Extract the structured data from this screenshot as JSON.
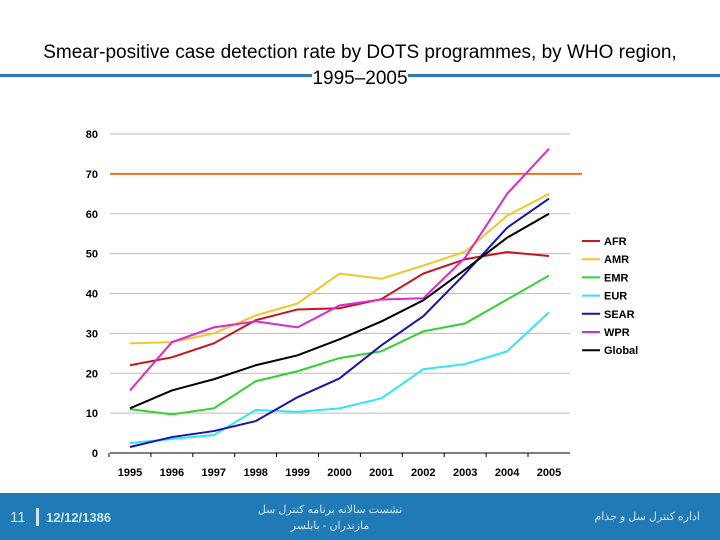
{
  "chart_data": {
    "type": "line",
    "title": "Smear-positive case detection rate by DOTS programmes, by WHO region, 1995–2005",
    "x": [
      1995,
      1996,
      1997,
      1998,
      1999,
      2000,
      2001,
      2002,
      2003,
      2004,
      2005
    ],
    "ylim": [
      0,
      80
    ],
    "yticks": [
      0,
      10,
      20,
      30,
      40,
      50,
      60,
      70,
      80
    ],
    "grid": true,
    "legend": "right",
    "target_line": {
      "value": 70,
      "color": "#e8731c"
    },
    "series": [
      {
        "name": "AFR",
        "color": "#c8141e",
        "values": [
          22,
          24,
          27.5,
          33.3,
          36,
          36.3,
          38.6,
          45,
          48.6,
          50.4,
          49.4
        ]
      },
      {
        "name": "AMR",
        "color": "#f0c828",
        "values": [
          27.5,
          27.8,
          30,
          34.5,
          37.5,
          45,
          43.7,
          47,
          50.5,
          59.5,
          65
        ]
      },
      {
        "name": "EMR",
        "color": "#32d232",
        "values": [
          11,
          9.7,
          11.2,
          18,
          20.5,
          23.8,
          25.5,
          30.5,
          32.5,
          38.5,
          44.5
        ]
      },
      {
        "name": "EUR",
        "color": "#32e6f0",
        "values": [
          2.5,
          3.5,
          4.5,
          10.8,
          10.3,
          11.2,
          13.7,
          21,
          22.3,
          25.5,
          35.3
        ]
      },
      {
        "name": "SEAR",
        "color": "#1414b4",
        "values": [
          1.5,
          4,
          5.5,
          8,
          14,
          18.7,
          27,
          34.3,
          45,
          56.5,
          63.8
        ]
      },
      {
        "name": "WPR",
        "color": "#dc28d2",
        "values": [
          15.7,
          27.8,
          31.5,
          33,
          31.5,
          37,
          38.5,
          38.8,
          49,
          65,
          76.3
        ]
      },
      {
        "name": "Global",
        "color": "#000000",
        "values": [
          11.2,
          15.7,
          18.5,
          22,
          24.5,
          28.5,
          33,
          38.3,
          46,
          54,
          60
        ]
      }
    ]
  },
  "footer": {
    "page": "11",
    "date": "12/12/1386",
    "center_line1": "نشست سالانه برنامه کنترل سل",
    "center_line2": "مازندران - بابلسر",
    "right": "اداره کنترل سل و جذام"
  }
}
